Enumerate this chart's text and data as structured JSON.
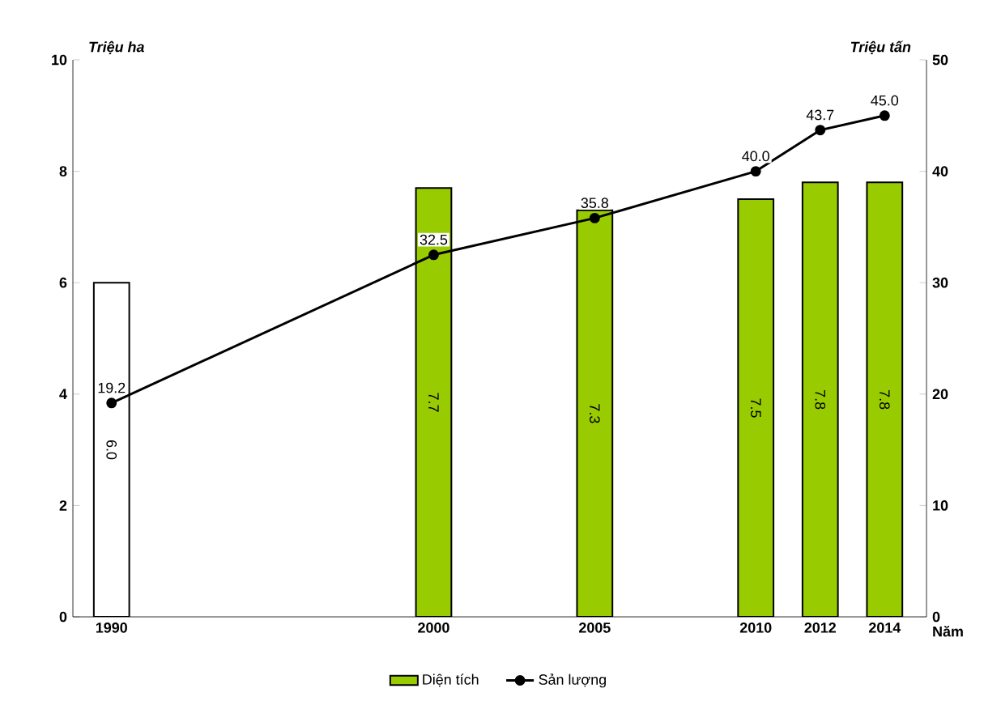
{
  "chart_data": {
    "type": "bar",
    "ylabel": "Triệu ha",
    "y2label": "Triệu tấn",
    "xlabel": "Năm",
    "x": [
      1990,
      2000,
      2005,
      2010,
      2012,
      2014
    ],
    "xlim": [
      1988.8,
      2015.3
    ],
    "xticks": [
      1990,
      2000,
      2005,
      2010,
      2012,
      2014
    ],
    "ylim": [
      0,
      10
    ],
    "yticks": [
      0,
      2,
      4,
      6,
      8,
      10
    ],
    "y2lim": [
      0,
      50
    ],
    "y2ticks": [
      0,
      10,
      20,
      30,
      40,
      50
    ],
    "grid": false,
    "legend": "bottom",
    "marker": "circle",
    "line_style": "solid",
    "series": [
      {
        "name": "Diện tích",
        "color": "#99cc00",
        "colors": [
          "#ffffff",
          "#99cc00",
          "#99cc00",
          "#99cc00",
          "#99cc00",
          "#99cc00"
        ],
        "values": [
          6.0,
          7.7,
          7.3,
          7.5,
          7.8,
          7.8
        ],
        "value_labels": [
          "6.0",
          "7.7",
          "7.3",
          "7.5",
          "7.8",
          "7.8"
        ]
      },
      {
        "name": "Sản lượng",
        "type": "line",
        "axis": "y2",
        "color": "#000000",
        "values": [
          19.2,
          32.5,
          35.8,
          40.0,
          43.7,
          45.0
        ],
        "value_labels": [
          "19.2",
          "32.5",
          "35.8",
          "40.0",
          "43.7",
          "45.0"
        ]
      }
    ]
  }
}
